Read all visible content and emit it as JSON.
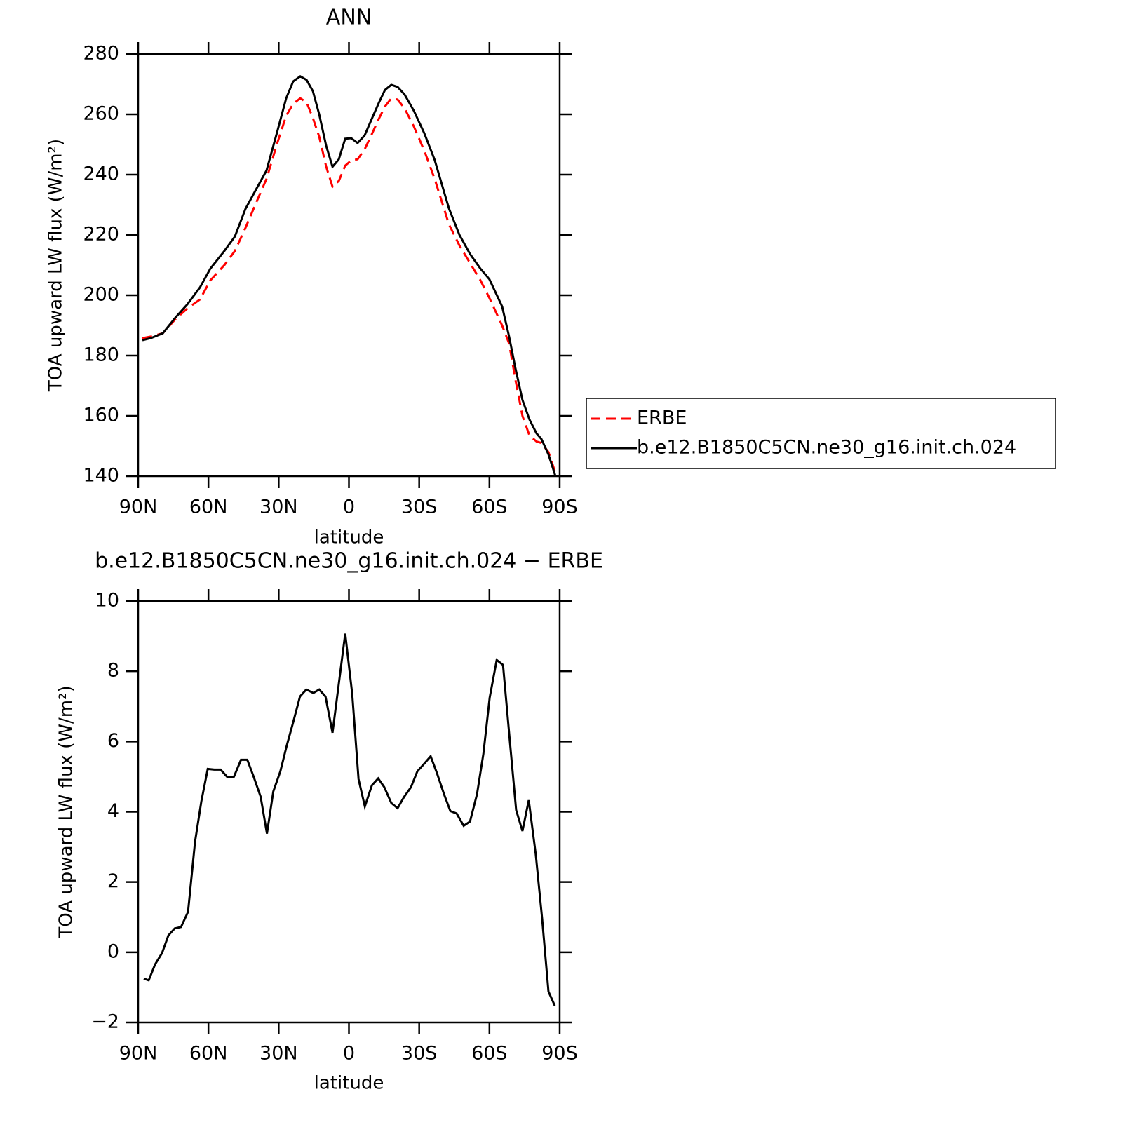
{
  "chart_data": [
    {
      "type": "line",
      "title": "ANN",
      "xlabel": "latitude",
      "ylabel": "TOA upward LW flux (W/m²)",
      "x": [
        88.2,
        84.6,
        79.5,
        74.1,
        69.0,
        63.6,
        59.2,
        53.2,
        48.7,
        44.2,
        39.7,
        35.2,
        30.7,
        26.8,
        23.8,
        20.8,
        18.1,
        15.4,
        12.7,
        9.7,
        7.0,
        4.3,
        1.6,
        -1.0,
        -3.7,
        -6.7,
        -9.7,
        -12.7,
        -15.4,
        -18.1,
        -20.8,
        -23.8,
        -27.7,
        -32.2,
        -36.6,
        -42.7,
        -47.2,
        -51.7,
        -56.2,
        -60.0,
        -65.4,
        -68.4,
        -71.1,
        -74.1,
        -77.1,
        -80.1,
        -82.2,
        -85.2,
        -88.2
      ],
      "series": [
        {
          "name": "ERBE",
          "color": "#ff0000",
          "dashed": true,
          "values": [
            185.8,
            186.3,
            187.4,
            192.1,
            195.6,
            198.6,
            204.9,
            210,
            214.7,
            222.3,
            230.5,
            238.6,
            250.2,
            259.5,
            263.5,
            265.3,
            264,
            258.8,
            252.6,
            242.6,
            236,
            237.9,
            243,
            244.7,
            245.1,
            248.4,
            253.3,
            258.4,
            262.6,
            265.3,
            264.9,
            261.9,
            256,
            247.9,
            238.6,
            223.5,
            216.5,
            210.7,
            204.9,
            199.1,
            190,
            184,
            172,
            160,
            153.5,
            151.5,
            151,
            148,
            141
          ]
        },
        {
          "name": "b.e12.B1850C5CN.ne30_g16.init.ch.024",
          "color": "#000000",
          "dashed": false,
          "values": [
            185.1,
            185.8,
            187.4,
            192.6,
            197,
            202.6,
            208.8,
            214.7,
            219.5,
            228.6,
            235,
            241.4,
            254,
            265.3,
            270.9,
            272.6,
            271.4,
            267.7,
            260,
            249.5,
            242.6,
            245.1,
            251.9,
            252.1,
            250.5,
            253,
            258.4,
            263.7,
            268.1,
            269.8,
            269.1,
            266.5,
            261.2,
            253.7,
            244.9,
            228.8,
            220,
            213.7,
            208.8,
            205.3,
            196.3,
            186.3,
            175.8,
            165.3,
            158.8,
            154.2,
            152.3,
            147.2,
            140
          ]
        }
      ],
      "xlim": [
        90,
        -90
      ],
      "xticks": [
        {
          "value": 90,
          "label": "90N"
        },
        {
          "value": 60,
          "label": "60N"
        },
        {
          "value": 30,
          "label": "30N"
        },
        0,
        {
          "value": -30,
          "label": "30S"
        },
        {
          "value": -60,
          "label": "60S"
        },
        {
          "value": -90,
          "label": "90S"
        }
      ],
      "ylim": [
        140,
        280
      ],
      "yticks": [
        140,
        160,
        180,
        200,
        220,
        240,
        260,
        280
      ],
      "legend": "right"
    },
    {
      "type": "line",
      "title": "b.e12.B1850C5CN.ne30_g16.init.ch.024 − ERBE",
      "xlabel": "latitude",
      "ylabel": "TOA upward LW flux (W/m²)",
      "x": [
        87.6,
        85.5,
        82.8,
        79.8,
        77.1,
        74.4,
        71.7,
        68.7,
        65.7,
        63.0,
        60.3,
        57.5,
        54.8,
        51.8,
        49.1,
        46.1,
        43.4,
        40.7,
        37.7,
        35.0,
        32.3,
        29.3,
        26.6,
        23.6,
        20.9,
        18.2,
        15.2,
        12.7,
        10.0,
        7.0,
        4.3,
        1.6,
        -1.4,
        -4.1,
        -6.8,
        -9.8,
        -12.5,
        -15.1,
        -18.1,
        -20.8,
        -23.5,
        -26.5,
        -29.2,
        -31.9,
        -34.9,
        -37.6,
        -40.6,
        -43.3,
        -46.0,
        -49.0,
        -51.7,
        -54.7,
        -57.4,
        -60.1,
        -63.1,
        -65.8,
        -68.8,
        -71.4,
        -74.1,
        -76.8,
        -79.8,
        -82.5,
        -85.2,
        -87.9
      ],
      "series": [
        {
          "color": "#000000",
          "dashed": false,
          "values": [
            -0.75,
            -0.8,
            -0.35,
            -0.02,
            0.48,
            0.68,
            0.72,
            1.15,
            3.15,
            4.3,
            5.22,
            5.2,
            5.2,
            4.98,
            5.0,
            5.48,
            5.48,
            5.0,
            4.43,
            3.38,
            4.58,
            5.15,
            5.87,
            6.6,
            7.28,
            7.48,
            7.38,
            7.48,
            7.28,
            6.25,
            7.65,
            9.07,
            7.35,
            4.93,
            4.15,
            4.75,
            4.95,
            4.7,
            4.25,
            4.1,
            4.42,
            4.7,
            5.15,
            5.35,
            5.58,
            5.1,
            4.5,
            4.02,
            3.95,
            3.6,
            3.72,
            4.5,
            5.65,
            7.25,
            8.32,
            8.18,
            5.95,
            4.05,
            3.45,
            4.33,
            2.78,
            0.95,
            -1.12,
            -1.52
          ]
        }
      ],
      "xlim": [
        90,
        -90
      ],
      "xticks": [
        {
          "value": 90,
          "label": "90N"
        },
        {
          "value": 60,
          "label": "60N"
        },
        {
          "value": 30,
          "label": "30N"
        },
        0,
        {
          "value": -30,
          "label": "30S"
        },
        {
          "value": -60,
          "label": "60S"
        },
        {
          "value": -90,
          "label": "90S"
        }
      ],
      "ylim": [
        -2,
        10
      ],
      "yticks": [
        {
          "value": -2,
          "label": "−2"
        },
        0,
        2,
        4,
        6,
        8,
        10
      ]
    }
  ]
}
